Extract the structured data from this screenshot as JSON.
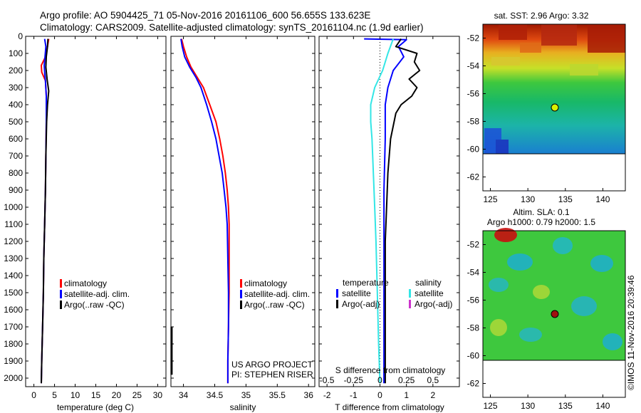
{
  "header": {
    "line1": "Argo profile: AO 5904425_71 05-Nov-2016 20161106_600 56.655S 133.623E",
    "line2": "Climatology: CARS2009. Satellite-adjusted climatology: synTS_20161104.nc (1.9d earlier)"
  },
  "colors": {
    "climatology": "#ff0000",
    "satellite": "#0000ff",
    "argo": "#000000",
    "salinity_satellite": "#33e6e6",
    "salinity_argo_adj": "#cc33cc"
  },
  "legend_common": [
    {
      "label": "climatology",
      "color": "#ff0000"
    },
    {
      "label": "satellite-adj. clim.",
      "color": "#0000ff"
    },
    {
      "label": "Argo(..raw -QC)",
      "color": "#000000"
    }
  ],
  "legend_diff": {
    "temperature_title": "temperature",
    "salinity_title": "salinity",
    "temperature_items": [
      {
        "label": "satellite",
        "color": "#0000ff"
      },
      {
        "label": "Argo(-adj)",
        "color": "#000000"
      }
    ],
    "salinity_items": [
      {
        "label": "satellite",
        "color": "#33e6e6"
      },
      {
        "label": "Argo(-adj)",
        "color": "#cc33cc"
      }
    ]
  },
  "credit": {
    "line1": "US ARGO PROJECT",
    "line2": "PI: STEPHEN RISER"
  },
  "map_top": {
    "title": "sat. SST: 2.96 Argo: 3.32",
    "xticks": [
      "125",
      "130",
      "135",
      "140"
    ],
    "yticks": [
      "-52",
      "-54",
      "-56",
      "-58",
      "-60",
      "-62"
    ]
  },
  "map_bottom": {
    "title1": "Altim. SLA: 0.1",
    "title2": "Argo h1000: 0.79 h2000: 1.5",
    "xticks": [
      "125",
      "130",
      "135",
      "140"
    ],
    "yticks": [
      "-52",
      "-54",
      "-56",
      "-58",
      "-60",
      "-62"
    ]
  },
  "imos_stamp": "©IMOS 11-Nov-2016 20:39:46",
  "chart_data": [
    {
      "type": "line",
      "name": "temperature profile",
      "xlabel": "temperature (deg C)",
      "xlim": [
        -2,
        32
      ],
      "ylim": [
        2050,
        0
      ],
      "xticks": [
        0,
        5,
        10,
        15,
        20,
        25,
        30
      ],
      "yticks": [
        0,
        100,
        200,
        300,
        400,
        500,
        600,
        700,
        800,
        900,
        1000,
        1100,
        1200,
        1300,
        1400,
        1500,
        1600,
        1700,
        1800,
        1900,
        2000
      ],
      "series": [
        {
          "name": "climatology",
          "color": "#ff0000",
          "points": [
            [
              3.6,
              15
            ],
            [
              3.3,
              60
            ],
            [
              2.8,
              120
            ],
            [
              1.8,
              170
            ],
            [
              1.9,
              210
            ],
            [
              2.8,
              260
            ],
            [
              3.0,
              350
            ],
            [
              3.0,
              500
            ],
            [
              2.9,
              700
            ],
            [
              2.8,
              900
            ],
            [
              2.6,
              1100
            ],
            [
              2.4,
              1300
            ],
            [
              2.3,
              1500
            ],
            [
              2.1,
              1700
            ],
            [
              1.9,
              1900
            ],
            [
              1.8,
              2030
            ]
          ]
        },
        {
          "name": "satellite-adj. clim.",
          "color": "#0000ff",
          "points": [
            [
              2.6,
              15
            ],
            [
              2.9,
              60
            ],
            [
              2.7,
              120
            ],
            [
              2.5,
              170
            ],
            [
              2.6,
              210
            ],
            [
              2.8,
              260
            ],
            [
              3.0,
              350
            ],
            [
              3.0,
              500
            ],
            [
              2.9,
              700
            ],
            [
              2.8,
              900
            ],
            [
              2.6,
              1100
            ],
            [
              2.4,
              1300
            ],
            [
              2.3,
              1500
            ],
            [
              2.1,
              1700
            ],
            [
              1.9,
              1900
            ],
            [
              1.8,
              2030
            ]
          ]
        },
        {
          "name": "Argo(..raw -QC)",
          "color": "#000000",
          "points": [
            [
              3.4,
              15
            ],
            [
              3.3,
              60
            ],
            [
              3.0,
              120
            ],
            [
              2.9,
              180
            ],
            [
              3.2,
              250
            ],
            [
              3.6,
              320
            ],
            [
              3.3,
              400
            ],
            [
              3.1,
              500
            ],
            [
              2.9,
              700
            ],
            [
              2.8,
              900
            ],
            [
              2.6,
              1100
            ],
            [
              2.4,
              1300
            ],
            [
              2.3,
              1500
            ],
            [
              2.1,
              1700
            ],
            [
              1.9,
              1900
            ],
            [
              1.8,
              2030
            ]
          ]
        }
      ]
    },
    {
      "type": "line",
      "name": "salinity profile",
      "xlabel": "salinity",
      "xlim": [
        33.8,
        36.1
      ],
      "ylim": [
        2050,
        0
      ],
      "xticks": [
        34,
        34.5,
        35,
        35.5,
        36
      ],
      "series": [
        {
          "name": "climatology",
          "color": "#ff0000",
          "points": [
            [
              33.97,
              15
            ],
            [
              34.0,
              60
            ],
            [
              34.05,
              120
            ],
            [
              34.12,
              180
            ],
            [
              34.22,
              240
            ],
            [
              34.32,
              300
            ],
            [
              34.42,
              400
            ],
            [
              34.52,
              500
            ],
            [
              34.58,
              600
            ],
            [
              34.63,
              700
            ],
            [
              34.67,
              800
            ],
            [
              34.7,
              900
            ],
            [
              34.72,
              1000
            ],
            [
              34.73,
              1100
            ],
            [
              34.73,
              1300
            ],
            [
              34.73,
              1500
            ],
            [
              34.72,
              1700
            ],
            [
              34.71,
              1900
            ],
            [
              34.71,
              2030
            ]
          ]
        },
        {
          "name": "satellite-adj. clim.",
          "color": "#0000ff",
          "points": [
            [
              33.96,
              15
            ],
            [
              33.98,
              60
            ],
            [
              34.02,
              120
            ],
            [
              34.1,
              180
            ],
            [
              34.2,
              240
            ],
            [
              34.28,
              300
            ],
            [
              34.37,
              400
            ],
            [
              34.45,
              500
            ],
            [
              34.52,
              600
            ],
            [
              34.57,
              700
            ],
            [
              34.62,
              800
            ],
            [
              34.65,
              900
            ],
            [
              34.68,
              1000
            ],
            [
              34.7,
              1100
            ],
            [
              34.71,
              1300
            ],
            [
              34.72,
              1500
            ],
            [
              34.72,
              1700
            ],
            [
              34.71,
              1900
            ],
            [
              34.71,
              2030
            ]
          ]
        },
        {
          "name": "Argo(..raw -QC)",
          "color": "#000000",
          "points": [
            [
              33.81,
              1700
            ],
            [
              33.81,
              1800
            ],
            [
              33.81,
              1900
            ],
            [
              33.81,
              1980
            ]
          ]
        }
      ]
    },
    {
      "type": "line",
      "name": "difference from climatology",
      "xlabel": "T difference from climatology",
      "top_axis_label": "S difference from climatology",
      "xlim": [
        -2.3,
        3.0
      ],
      "ylim": [
        2050,
        0
      ],
      "xticks": [
        -2,
        -1,
        0,
        1,
        2
      ],
      "top_ticks": [
        "-0.5",
        "-0.25",
        "0",
        "0.25",
        "0.5"
      ],
      "top_tick_values": [
        -2,
        -1,
        0,
        1,
        2
      ],
      "zero_line": 0,
      "series": [
        {
          "name": "temperature satellite",
          "color": "#0000ff",
          "points": [
            [
              -0.6,
              15
            ],
            [
              1.0,
              20
            ],
            [
              0.7,
              60
            ],
            [
              0.9,
              120
            ],
            [
              0.5,
              200
            ],
            [
              0.3,
              300
            ],
            [
              0.2,
              400
            ],
            [
              0.2,
              600
            ],
            [
              0.15,
              900
            ],
            [
              0.15,
              1200
            ],
            [
              0.15,
              1500
            ],
            [
              0.15,
              1800
            ],
            [
              0.15,
              2030
            ]
          ]
        },
        {
          "name": "temperature Argo(-adj)",
          "color": "#000000",
          "points": [
            [
              0.8,
              15
            ],
            [
              0.6,
              60
            ],
            [
              1.4,
              100
            ],
            [
              1.3,
              150
            ],
            [
              1.5,
              200
            ],
            [
              1.1,
              250
            ],
            [
              1.4,
              300
            ],
            [
              1.2,
              350
            ],
            [
              0.8,
              400
            ],
            [
              0.6,
              450
            ],
            [
              0.4,
              600
            ],
            [
              0.3,
              800
            ],
            [
              0.25,
              1000
            ],
            [
              0.2,
              1200
            ],
            [
              0.2,
              1500
            ],
            [
              0.2,
              1800
            ],
            [
              0.2,
              2030
            ]
          ]
        },
        {
          "name": "salinity satellite",
          "color": "#33e6e6",
          "points": [
            [
              0.5,
              15
            ],
            [
              0.3,
              100
            ],
            [
              0.1,
              200
            ],
            [
              -0.2,
              300
            ],
            [
              -0.35,
              400
            ],
            [
              -0.35,
              500
            ],
            [
              -0.3,
              600
            ],
            [
              -0.25,
              800
            ],
            [
              -0.2,
              1000
            ],
            [
              -0.15,
              1200
            ],
            [
              -0.1,
              1500
            ],
            [
              -0.05,
              1800
            ],
            [
              0.0,
              2030
            ]
          ]
        }
      ]
    }
  ]
}
